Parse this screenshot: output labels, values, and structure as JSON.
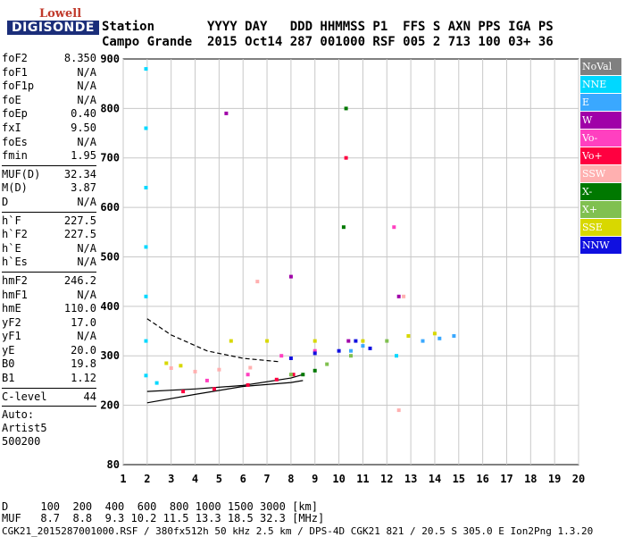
{
  "logo": {
    "top": "Lowell",
    "bottom": "DIGISONDE"
  },
  "header": {
    "row1": "Station       YYYY DAY   DDD HHMMSS P1  FFS S AXN PPS IGA PS",
    "row2": "Campo Grande  2015 Oct14 287 001000 RSF 005 2 713 100 03+ 36"
  },
  "params_group1": [
    {
      "k": "foF2",
      "v": "8.350"
    },
    {
      "k": "foF1",
      "v": "N/A"
    },
    {
      "k": "foF1p",
      "v": "N/A"
    },
    {
      "k": "foE",
      "v": "N/A"
    },
    {
      "k": "foEp",
      "v": "0.40"
    },
    {
      "k": "fxI",
      "v": "9.50"
    },
    {
      "k": "foEs",
      "v": "N/A"
    },
    {
      "k": "fmin",
      "v": "1.95"
    }
  ],
  "params_group2": [
    {
      "k": "MUF(D)",
      "v": "32.34"
    },
    {
      "k": "M(D)",
      "v": "3.87"
    },
    {
      "k": "D",
      "v": "N/A"
    }
  ],
  "params_group3": [
    {
      "k": "h`F",
      "v": "227.5"
    },
    {
      "k": "h`F2",
      "v": "227.5"
    },
    {
      "k": "h`E",
      "v": "N/A"
    },
    {
      "k": "h`Es",
      "v": "N/A"
    }
  ],
  "params_group4": [
    {
      "k": "hmF2",
      "v": "246.2"
    },
    {
      "k": "hmF1",
      "v": "N/A"
    },
    {
      "k": "hmE",
      "v": "110.0"
    },
    {
      "k": "yF2",
      "v": "17.0"
    },
    {
      "k": "yF1",
      "v": "N/A"
    },
    {
      "k": "yE",
      "v": "20.0"
    },
    {
      "k": "B0",
      "v": "19.8"
    },
    {
      "k": "B1",
      "v": "1.12"
    }
  ],
  "params_group5": [
    {
      "k": "C-level",
      "v": "44"
    }
  ],
  "autoscale": {
    "line1": "Auto:",
    "line2": "Artist5",
    "line3": "500200"
  },
  "legend": [
    {
      "label": "NoVal",
      "color": "#808080"
    },
    {
      "label": "NNE",
      "color": "#00d8ff"
    },
    {
      "label": "E",
      "color": "#3aa8ff"
    },
    {
      "label": "W",
      "color": "#a000a8"
    },
    {
      "label": "Vo-",
      "color": "#ff40c0"
    },
    {
      "label": "Vo+",
      "color": "#ff0040"
    },
    {
      "label": "SSW",
      "color": "#ffb0b0"
    },
    {
      "label": "X-",
      "color": "#007800"
    },
    {
      "label": "X+",
      "color": "#80c050"
    },
    {
      "label": "SSE",
      "color": "#d8d800"
    },
    {
      "label": "NNW",
      "color": "#1010e0"
    }
  ],
  "footer": {
    "d_row": "D     100  200  400  600  800 1000 1500 3000 [km]",
    "muf_row": "MUF   8.7  8.8  9.3 10.2 11.5 13.3 18.5 32.3 [MHz]",
    "file_row": "CGK21_2015287001000.RSF / 380fx512h 50 kHz 2.5 km / DPS-4D CGK21 821 / 20.5 S 305.0 E Ion2Png 1.3.20"
  },
  "chart_data": {
    "type": "scatter",
    "x_range": [
      1,
      20
    ],
    "y_range": [
      80,
      900
    ],
    "x_ticks": [
      1,
      2,
      3,
      4,
      5,
      6,
      7,
      8,
      9,
      10,
      11,
      12,
      13,
      14,
      15,
      16,
      17,
      18,
      19,
      20
    ],
    "y_ticks": [
      80,
      200,
      300,
      400,
      500,
      600,
      700,
      800,
      900
    ],
    "grid": true,
    "series": [
      {
        "name": "NNE",
        "color": "#00d8ff",
        "points": [
          [
            1.95,
            260
          ],
          [
            1.95,
            330
          ],
          [
            1.95,
            420
          ],
          [
            1.95,
            520
          ],
          [
            1.95,
            640
          ],
          [
            1.95,
            760
          ],
          [
            1.95,
            880
          ],
          [
            2.4,
            245
          ],
          [
            12.4,
            300
          ]
        ]
      },
      {
        "name": "E",
        "color": "#3aa8ff",
        "points": [
          [
            13.5,
            330
          ],
          [
            14.2,
            335
          ],
          [
            14.8,
            340
          ],
          [
            10.5,
            310
          ],
          [
            11.0,
            320
          ]
        ]
      },
      {
        "name": "W",
        "color": "#a000a8",
        "points": [
          [
            5.3,
            790
          ],
          [
            10.4,
            330
          ],
          [
            12.5,
            420
          ],
          [
            8.0,
            460
          ]
        ]
      },
      {
        "name": "Vo-",
        "color": "#ff40c0",
        "points": [
          [
            4.5,
            250
          ],
          [
            6.2,
            262
          ],
          [
            7.6,
            300
          ],
          [
            9.0,
            310
          ],
          [
            12.3,
            560
          ]
        ]
      },
      {
        "name": "Vo+",
        "color": "#ff0040",
        "points": [
          [
            3.5,
            228
          ],
          [
            4.8,
            233
          ],
          [
            6.2,
            241
          ],
          [
            7.4,
            252
          ],
          [
            8.1,
            262
          ],
          [
            10.3,
            700
          ]
        ]
      },
      {
        "name": "SSW",
        "color": "#ffb0b0",
        "points": [
          [
            3.0,
            275
          ],
          [
            4.0,
            268
          ],
          [
            5.0,
            272
          ],
          [
            6.3,
            276
          ],
          [
            12.5,
            190
          ],
          [
            12.7,
            420
          ],
          [
            6.6,
            450
          ]
        ]
      },
      {
        "name": "X-",
        "color": "#007800",
        "points": [
          [
            8.5,
            262
          ],
          [
            9.0,
            270
          ],
          [
            10.3,
            800
          ],
          [
            10.2,
            560
          ]
        ]
      },
      {
        "name": "X+",
        "color": "#80c050",
        "points": [
          [
            8.0,
            262
          ],
          [
            9.5,
            283
          ],
          [
            10.5,
            300
          ],
          [
            12.0,
            330
          ]
        ]
      },
      {
        "name": "SSE",
        "color": "#d8d800",
        "points": [
          [
            2.8,
            285
          ],
          [
            3.4,
            280
          ],
          [
            5.5,
            330
          ],
          [
            7.0,
            330
          ],
          [
            9.0,
            330
          ],
          [
            11.0,
            330
          ],
          [
            12.9,
            340
          ],
          [
            14.0,
            345
          ]
        ]
      },
      {
        "name": "NNW",
        "color": "#1010e0",
        "points": [
          [
            8.0,
            295
          ],
          [
            9.0,
            305
          ],
          [
            10.0,
            310
          ],
          [
            10.7,
            330
          ],
          [
            11.3,
            315
          ]
        ]
      }
    ],
    "fit_curves": [
      {
        "points": [
          [
            2.0,
            228
          ],
          [
            4.0,
            233
          ],
          [
            6.0,
            240
          ],
          [
            8.0,
            255
          ],
          [
            8.5,
            262
          ]
        ]
      },
      {
        "points": [
          [
            2.0,
            205
          ],
          [
            4.0,
            222
          ],
          [
            6.0,
            238
          ],
          [
            8.0,
            246
          ],
          [
            8.5,
            250
          ]
        ]
      },
      {
        "points": [
          [
            2.0,
            375
          ],
          [
            3.0,
            342
          ],
          [
            4.5,
            310
          ],
          [
            6.0,
            295
          ],
          [
            7.5,
            288
          ]
        ]
      }
    ]
  }
}
